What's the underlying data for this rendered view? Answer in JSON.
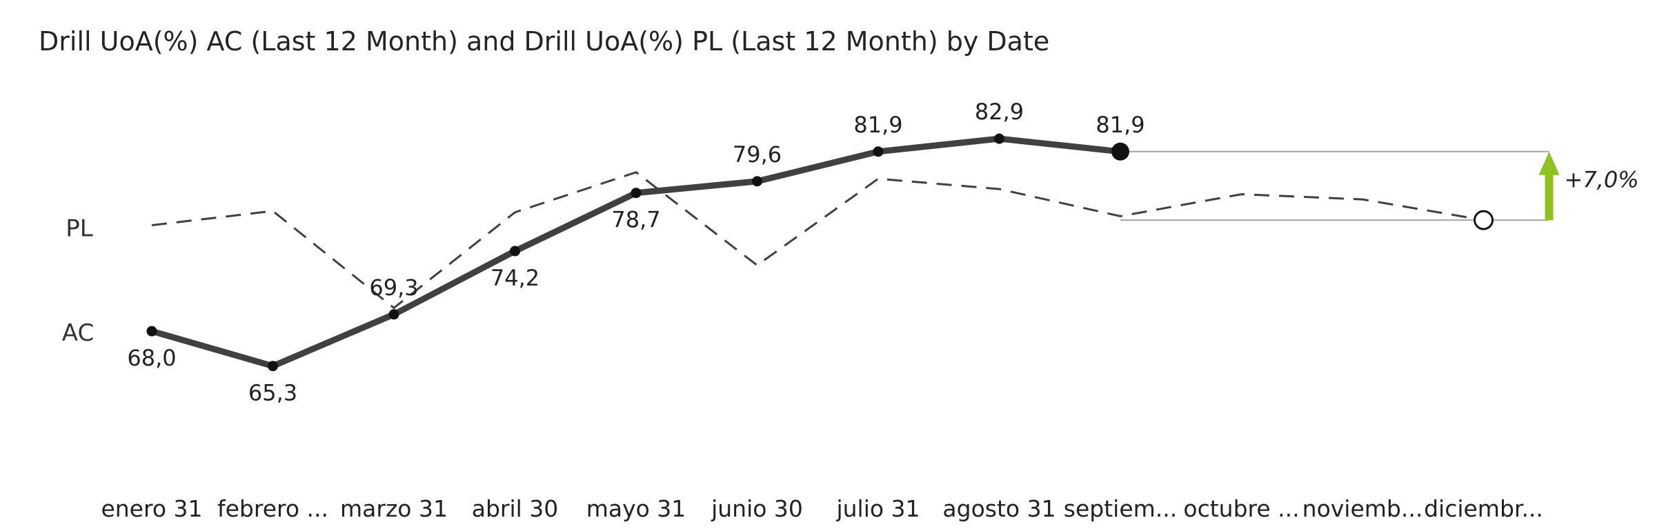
{
  "chart_data": {
    "type": "line",
    "title": "Drill UoA(%) AC (Last 12 Month) and Drill UoA(%) PL (Last 12 Month) by Date",
    "categories": [
      "enero 31",
      "febrero ...",
      "marzo 31",
      "abril 30",
      "mayo 31",
      "junio 30",
      "julio 31",
      "agosto 31",
      "septiem...",
      "octubre ...",
      "noviemb...",
      "diciembr..."
    ],
    "series": [
      {
        "name": "AC",
        "values": [
          68.0,
          65.3,
          69.3,
          74.2,
          78.7,
          79.6,
          81.9,
          82.9,
          81.9,
          null,
          null,
          null
        ],
        "labels": [
          "68,0",
          "65,3",
          "69,3",
          "74,2",
          "78,7",
          "79,6",
          "81,9",
          "82,9",
          "81,9",
          "",
          "",
          ""
        ],
        "color": "#404040",
        "style": "solid"
      },
      {
        "name": "PL",
        "values": [
          76.2,
          77.3,
          69.8,
          77.2,
          80.3,
          73.1,
          79.8,
          79.0,
          76.9,
          78.6,
          78.2,
          76.6
        ],
        "color": "#404040",
        "style": "dashed"
      }
    ],
    "variance": {
      "label": "+7,0%",
      "color": "#8DC21F"
    },
    "ylim": [
      60,
      86
    ],
    "xlabel": "",
    "ylabel": "",
    "grid": false,
    "legend": "left, inline series labels"
  }
}
